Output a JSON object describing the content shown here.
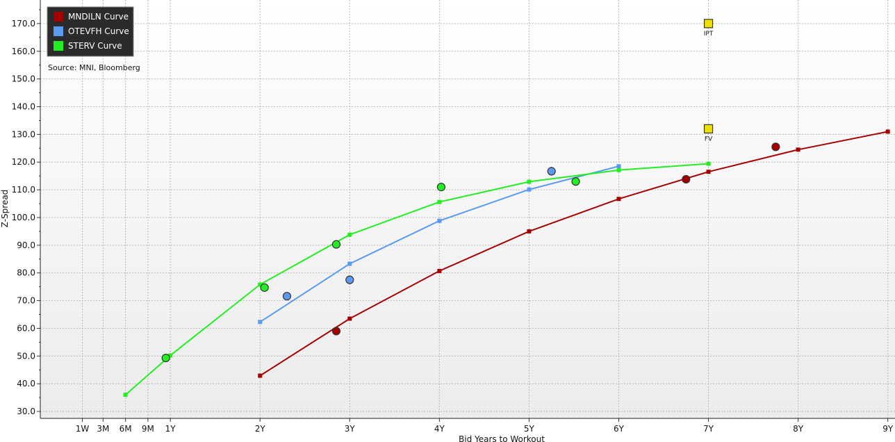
{
  "chart_data": {
    "type": "scatter",
    "source": "Source: MNI, Bloomberg",
    "xlabel": "Bid Years to Workout",
    "ylabel": "Z-Spread",
    "xlim": [
      -0.45,
      9.08
    ],
    "ylim": [
      27.5,
      178.5
    ],
    "grid": true,
    "legend_position": "top-left",
    "y_ticks": [
      {
        "value": 30,
        "label": "30.0"
      },
      {
        "value": 40,
        "label": "40.0"
      },
      {
        "value": 50,
        "label": "50.0"
      },
      {
        "value": 60,
        "label": "60.0"
      },
      {
        "value": 70,
        "label": "70.0"
      },
      {
        "value": 80,
        "label": "80.0"
      },
      {
        "value": 90,
        "label": "90.0"
      },
      {
        "value": 100,
        "label": "100.0"
      },
      {
        "value": 110,
        "label": "110.0"
      },
      {
        "value": 120,
        "label": "120.0"
      },
      {
        "value": 130,
        "label": "130.0"
      },
      {
        "value": 140,
        "label": "140.0"
      },
      {
        "value": 150,
        "label": "150.0"
      },
      {
        "value": 160,
        "label": "160.0"
      },
      {
        "value": 170,
        "label": "170.0"
      }
    ],
    "x_ticks": [
      {
        "value": 0.0192,
        "label": "1W"
      },
      {
        "value": 0.25,
        "label": "3M"
      },
      {
        "value": 0.5,
        "label": "6M"
      },
      {
        "value": 0.75,
        "label": "9M"
      },
      {
        "value": 1,
        "label": "1Y"
      },
      {
        "value": 2,
        "label": "2Y"
      },
      {
        "value": 3,
        "label": "3Y"
      },
      {
        "value": 4,
        "label": "4Y"
      },
      {
        "value": 5,
        "label": "5Y"
      },
      {
        "value": 6,
        "label": "6Y"
      },
      {
        "value": 7,
        "label": "7Y"
      },
      {
        "value": 8,
        "label": "8Y"
      },
      {
        "value": 9,
        "label": "9Y"
      }
    ],
    "series": [
      {
        "name": "MNDILN Curve",
        "color": "#a50000",
        "curve": [
          [
            2,
            42.9
          ],
          [
            3,
            63.5
          ],
          [
            4,
            80.7
          ],
          [
            5,
            95.0
          ],
          [
            6,
            106.7
          ],
          [
            7,
            116.5
          ],
          [
            8,
            124.5
          ],
          [
            9,
            131.0
          ]
        ],
        "bonds": [
          [
            2.85,
            59.0
          ],
          [
            6.75,
            113.8
          ],
          [
            7.75,
            125.5
          ]
        ]
      },
      {
        "name": "OTEVFH Curve",
        "color": "#5a9af0",
        "curve": [
          [
            2,
            62.3
          ],
          [
            3,
            83.3
          ],
          [
            4,
            98.8
          ],
          [
            5,
            110.1
          ],
          [
            6,
            118.5
          ]
        ],
        "bonds": [
          [
            2.3,
            71.6
          ],
          [
            3,
            77.5
          ],
          [
            5.25,
            116.7
          ]
        ]
      },
      {
        "name": "STERV Curve",
        "color": "#22ee22",
        "curve": [
          [
            0.5,
            36.0
          ],
          [
            1,
            50.2
          ],
          [
            2,
            75.8
          ],
          [
            3,
            93.8
          ],
          [
            4,
            105.6
          ],
          [
            5,
            112.9
          ],
          [
            6,
            117.1
          ],
          [
            7,
            119.4
          ]
        ],
        "bonds": [
          [
            0.95,
            49.3
          ],
          [
            2.05,
            74.7
          ],
          [
            2.85,
            90.3
          ],
          [
            4.02,
            111.0
          ],
          [
            5.52,
            113.0
          ]
        ]
      }
    ],
    "annotations": [
      {
        "label": "IPT",
        "x": 7,
        "y": 170,
        "color": "#f0e000"
      },
      {
        "label": "FV",
        "x": 7,
        "y": 132,
        "color": "#f0e000"
      }
    ]
  }
}
